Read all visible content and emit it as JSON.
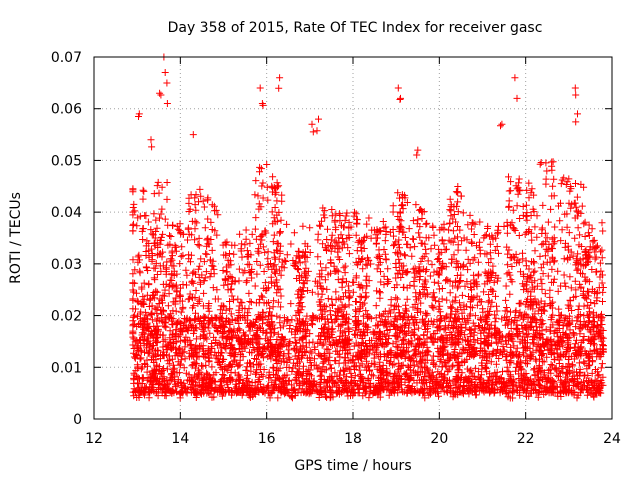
{
  "chart_data": {
    "type": "scatter",
    "title": "Day 358 of 2015, Rate Of TEC Index for receiver gasc",
    "xlabel": "GPS time / hours",
    "ylabel": "ROTI / TECUs",
    "xlim": [
      12,
      24
    ],
    "ylim": [
      0,
      0.07
    ],
    "x_ticks": [
      12,
      14,
      16,
      18,
      20,
      22,
      24
    ],
    "x_tick_labels": [
      "12",
      "14",
      "16",
      "18",
      "20",
      "22",
      "24"
    ],
    "y_ticks": [
      0,
      0.01,
      0.02,
      0.03,
      0.04,
      0.05,
      0.06,
      0.07
    ],
    "y_tick_labels": [
      "0",
      "0.01",
      "0.02",
      "0.03",
      "0.04",
      "0.05",
      "0.06",
      "0.07"
    ],
    "grid": true,
    "marker": "+",
    "series_color": "#ff0000",
    "time_range_hours": [
      12.9,
      23.8
    ],
    "notable_points": [
      {
        "x": 13.05,
        "y": 0.059
      },
      {
        "x": 13.32,
        "y": 0.054
      },
      {
        "x": 13.52,
        "y": 0.063
      },
      {
        "x": 13.62,
        "y": 0.07
      },
      {
        "x": 13.65,
        "y": 0.067
      },
      {
        "x": 13.7,
        "y": 0.061
      },
      {
        "x": 14.3,
        "y": 0.055
      },
      {
        "x": 15.85,
        "y": 0.064
      },
      {
        "x": 15.9,
        "y": 0.061
      },
      {
        "x": 16.3,
        "y": 0.066
      },
      {
        "x": 17.05,
        "y": 0.057
      },
      {
        "x": 17.2,
        "y": 0.058
      },
      {
        "x": 19.05,
        "y": 0.064
      },
      {
        "x": 19.1,
        "y": 0.062
      },
      {
        "x": 19.5,
        "y": 0.052
      },
      {
        "x": 21.45,
        "y": 0.057
      },
      {
        "x": 21.75,
        "y": 0.066
      },
      {
        "x": 21.8,
        "y": 0.062
      },
      {
        "x": 23.15,
        "y": 0.064
      },
      {
        "x": 23.2,
        "y": 0.059
      }
    ],
    "cluster_peaks": [
      {
        "x": 13.0,
        "y": 0.045
      },
      {
        "x": 13.3,
        "y": 0.04
      },
      {
        "x": 13.55,
        "y": 0.046
      },
      {
        "x": 13.9,
        "y": 0.038
      },
      {
        "x": 14.3,
        "y": 0.045
      },
      {
        "x": 14.7,
        "y": 0.043
      },
      {
        "x": 15.1,
        "y": 0.035
      },
      {
        "x": 15.5,
        "y": 0.034
      },
      {
        "x": 15.9,
        "y": 0.05
      },
      {
        "x": 16.25,
        "y": 0.047
      },
      {
        "x": 16.8,
        "y": 0.033
      },
      {
        "x": 17.35,
        "y": 0.042
      },
      {
        "x": 17.75,
        "y": 0.041
      },
      {
        "x": 18.2,
        "y": 0.04
      },
      {
        "x": 18.7,
        "y": 0.039
      },
      {
        "x": 19.1,
        "y": 0.046
      },
      {
        "x": 19.55,
        "y": 0.042
      },
      {
        "x": 20.0,
        "y": 0.038
      },
      {
        "x": 20.4,
        "y": 0.045
      },
      {
        "x": 20.8,
        "y": 0.042
      },
      {
        "x": 21.2,
        "y": 0.038
      },
      {
        "x": 21.7,
        "y": 0.047
      },
      {
        "x": 22.1,
        "y": 0.046
      },
      {
        "x": 22.5,
        "y": 0.05
      },
      {
        "x": 22.9,
        "y": 0.047
      },
      {
        "x": 23.3,
        "y": 0.046
      },
      {
        "x": 23.65,
        "y": 0.035
      }
    ]
  }
}
